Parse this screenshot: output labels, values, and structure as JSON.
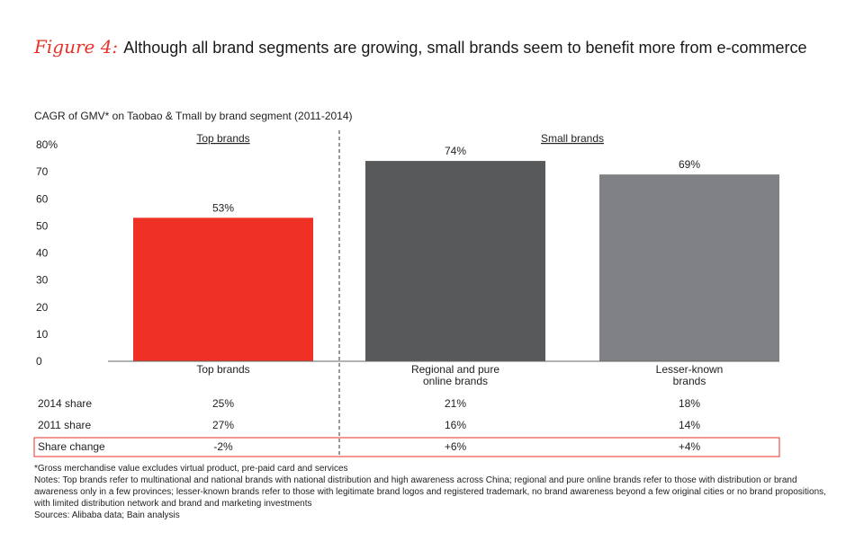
{
  "figure_label": "Figure 4:",
  "figure_title": "Although all brand segments are growing, small brands seem to benefit more from e-commerce",
  "subtitle": "CAGR of GMV* on Taobao & Tmall by brand segment (2011-2014)",
  "group_labels": {
    "top": "Top brands",
    "small": "Small brands"
  },
  "colors": {
    "top_brands": "#ee3124",
    "regional": "#58595b",
    "lesser": "#808184",
    "highlight_border": "#e8322a",
    "title_accent": "#e8322a"
  },
  "chart_data": {
    "type": "bar",
    "title": "CAGR of GMV* on Taobao & Tmall by brand segment (2011-2014)",
    "categories": [
      {
        "line1": "Top brands",
        "line2": ""
      },
      {
        "line1": "Regional and pure",
        "line2": "online brands"
      },
      {
        "line1": "Lesser-known",
        "line2": "brands"
      }
    ],
    "values": [
      53,
      74,
      69
    ],
    "data_labels": [
      "53%",
      "74%",
      "69%"
    ],
    "y_ticks": [
      "0",
      "10",
      "20",
      "30",
      "40",
      "50",
      "60",
      "70",
      "80%"
    ],
    "y_tick_values": [
      0,
      10,
      20,
      30,
      40,
      50,
      60,
      70,
      80
    ],
    "ylim": [
      0,
      80
    ],
    "xlabel": "",
    "ylabel": ""
  },
  "share_table": {
    "rows": [
      {
        "label": "2014 share",
        "values": [
          "25%",
          "21%",
          "18%"
        ]
      },
      {
        "label": "2011 share",
        "values": [
          "27%",
          "16%",
          "14%"
        ]
      },
      {
        "label": "Share change",
        "values": [
          "-2%",
          "+6%",
          "+4%"
        ]
      }
    ]
  },
  "footnotes": {
    "gmv_note": "*Gross merchandise value excludes virtual product, pre-paid card and services",
    "notes": "Notes: Top brands refer to multinational and national brands with national distribution and high awareness across China; regional and pure online brands refer to those with distribution or brand awareness only in a few provinces; lesser-known brands refer to those with legitimate brand logos and registered trademark, no brand awareness beyond a few original cities or no brand propositions, with limited distribution network and brand and marketing investments",
    "sources": "Sources: Alibaba data; Bain analysis"
  }
}
